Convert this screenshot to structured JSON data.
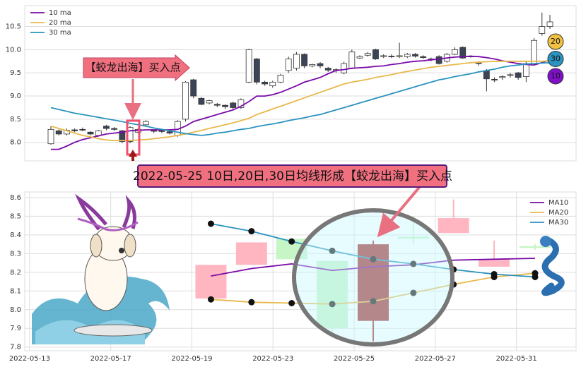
{
  "chart_data": [
    {
      "type": "candlestick",
      "annotation": "【蛟龙出海】买入点",
      "open": [
        7.97,
        8.25,
        8.18,
        8.27,
        8.28,
        8.22,
        8.15,
        8.35,
        8.3,
        8.25,
        8.02,
        8.22,
        8.38,
        8.26,
        8.25,
        8.23,
        8.15,
        8.5,
        9.35,
        8.95,
        8.85,
        8.82,
        8.8,
        8.85,
        8.75,
        9.3,
        9.8,
        9.3,
        9.22,
        9.3,
        9.55,
        9.6,
        9.9,
        9.65,
        9.7,
        9.6,
        9.55,
        9.5,
        9.6,
        9.82,
        9.88,
        10.0,
        9.85,
        9.86,
        9.85,
        9.85,
        9.9,
        9.85,
        9.8,
        9.85,
        9.75,
        9.9,
        10.05,
        9.85,
        9.72,
        9.55,
        9.36,
        9.4,
        9.45,
        9.5,
        9.42,
        9.7,
        10.35,
        10.5
      ],
      "high": [
        8.35,
        8.28,
        8.3,
        8.3,
        8.32,
        8.24,
        8.27,
        8.38,
        8.33,
        8.27,
        8.35,
        8.3,
        8.48,
        8.28,
        8.27,
        8.25,
        8.48,
        9.32,
        9.37,
        8.98,
        8.92,
        8.85,
        8.82,
        8.88,
        8.95,
        10.02,
        9.82,
        9.33,
        9.33,
        9.48,
        9.85,
        9.95,
        9.92,
        9.7,
        9.73,
        9.63,
        9.6,
        9.74,
        10.0,
        9.88,
        9.95,
        10.02,
        9.9,
        9.9,
        10.15,
        9.93,
        9.93,
        9.88,
        9.83,
        9.88,
        9.93,
        10.05,
        10.07,
        9.88,
        9.75,
        9.58,
        9.4,
        9.45,
        9.5,
        9.52,
        9.75,
        10.25,
        10.8,
        10.75
      ],
      "low": [
        7.95,
        8.15,
        8.15,
        8.22,
        8.24,
        8.15,
        8.12,
        8.26,
        8.25,
        7.98,
        7.98,
        8.2,
        8.35,
        8.2,
        8.2,
        8.17,
        8.12,
        8.45,
        8.95,
        8.8,
        8.82,
        8.76,
        8.72,
        8.72,
        8.72,
        9.28,
        9.25,
        9.22,
        9.18,
        9.28,
        9.5,
        9.55,
        9.6,
        9.62,
        9.6,
        9.52,
        9.5,
        9.47,
        9.58,
        9.8,
        9.85,
        9.78,
        9.82,
        9.82,
        9.82,
        9.82,
        9.83,
        9.8,
        9.75,
        9.68,
        9.72,
        9.88,
        9.8,
        9.83,
        9.65,
        9.1,
        9.3,
        9.35,
        9.4,
        9.35,
        9.3,
        9.68,
        10.3,
        10.45
      ],
      "close": [
        8.28,
        8.18,
        8.26,
        8.25,
        8.27,
        8.18,
        8.25,
        8.3,
        8.28,
        8.02,
        8.32,
        8.28,
        8.45,
        8.24,
        8.24,
        8.2,
        8.45,
        9.3,
        9.0,
        8.82,
        8.9,
        8.8,
        8.77,
        8.75,
        8.92,
        10.0,
        9.3,
        9.26,
        9.3,
        9.45,
        9.8,
        9.9,
        9.65,
        9.68,
        9.65,
        9.56,
        9.57,
        9.7,
        9.95,
        9.85,
        9.92,
        9.8,
        9.87,
        9.85,
        9.87,
        9.9,
        9.86,
        9.83,
        9.78,
        9.7,
        9.9,
        10.0,
        9.82,
        9.86,
        9.7,
        9.37,
        9.35,
        9.42,
        9.46,
        9.4,
        9.7,
        10.2,
        10.5,
        10.6
      ],
      "up_color": "#ffffff",
      "down_color": "#3c4558",
      "edge_color": "#333333",
      "series": [
        {
          "name": "10 ma",
          "color": "#7a0aa8",
          "values": [
            7.85,
            7.85,
            7.92,
            8.0,
            8.06,
            8.1,
            8.14,
            8.18,
            8.2,
            8.22,
            8.25,
            8.26,
            8.27,
            8.27,
            8.27,
            8.27,
            8.28,
            8.35,
            8.45,
            8.5,
            8.55,
            8.6,
            8.65,
            8.7,
            8.78,
            8.88,
            9.0,
            9.0,
            9.03,
            9.08,
            9.15,
            9.22,
            9.3,
            9.35,
            9.4,
            9.48,
            9.55,
            9.57,
            9.6,
            9.61,
            9.62,
            9.64,
            9.65,
            9.68,
            9.7,
            9.73,
            9.75,
            9.76,
            9.78,
            9.8,
            9.82,
            9.84,
            9.85,
            9.86,
            9.85,
            9.83,
            9.8,
            9.76,
            9.73,
            9.7,
            9.68,
            9.67,
            9.72,
            9.78
          ]
        },
        {
          "name": "20 ma",
          "color": "#e8b94a",
          "values": [
            8.35,
            8.3,
            8.25,
            8.2,
            8.15,
            8.12,
            8.08,
            8.05,
            8.04,
            8.04,
            8.04,
            8.05,
            8.06,
            8.08,
            8.1,
            8.12,
            8.15,
            8.18,
            8.22,
            8.26,
            8.3,
            8.34,
            8.38,
            8.42,
            8.47,
            8.52,
            8.6,
            8.66,
            8.72,
            8.78,
            8.84,
            8.9,
            8.96,
            9.02,
            9.08,
            9.14,
            9.2,
            9.26,
            9.3,
            9.33,
            9.36,
            9.4,
            9.43,
            9.46,
            9.5,
            9.53,
            9.56,
            9.59,
            9.62,
            9.64,
            9.66,
            9.68,
            9.7,
            9.72,
            9.73,
            9.74,
            9.75,
            9.75,
            9.75,
            9.75,
            9.75,
            9.75,
            9.75,
            9.76
          ]
        },
        {
          "name": "30 ma",
          "color": "#2a93c0",
          "values": [
            8.75,
            8.71,
            8.67,
            8.63,
            8.6,
            8.57,
            8.54,
            8.51,
            8.48,
            8.45,
            8.41,
            8.38,
            8.35,
            8.31,
            8.28,
            8.25,
            8.22,
            8.19,
            8.17,
            8.15,
            8.17,
            8.2,
            8.22,
            8.25,
            8.28,
            8.3,
            8.34,
            8.37,
            8.4,
            8.43,
            8.47,
            8.5,
            8.53,
            8.57,
            8.6,
            8.65,
            8.7,
            8.75,
            8.8,
            8.85,
            8.9,
            8.95,
            9.0,
            9.05,
            9.1,
            9.15,
            9.2,
            9.25,
            9.3,
            9.35,
            9.38,
            9.42,
            9.45,
            9.48,
            9.52,
            9.55,
            9.58,
            9.62,
            9.65,
            9.67,
            9.69,
            9.7,
            9.71,
            9.72
          ]
        }
      ],
      "badges": [
        {
          "label": "20",
          "color": "#f0c040"
        },
        {
          "label": "30",
          "color": "#2a93c0"
        },
        {
          "label": "10",
          "color": "#8010c8"
        }
      ],
      "ylim": [
        7.6,
        10.95
      ],
      "yticks": [
        {
          "value": 8,
          "label": "8.0"
        },
        8.5,
        {
          "value": 9,
          "label": "9.0"
        },
        9.5,
        {
          "value": 10,
          "label": "10.0"
        },
        10.5
      ],
      "grid": true,
      "legend": "upper left"
    },
    {
      "type": "candlestick",
      "title": "2022-05-25 10日,20日,30日均线形成【蛟龙出海】买入点",
      "x": [
        4.47,
        5.47,
        6.46,
        7.46,
        8.47,
        9.46,
        10.45,
        11.45,
        12.46
      ],
      "open": [
        8.06,
        8.24,
        8.38,
        8.26,
        7.94,
        8.38,
        8.41,
        8.23,
        8.34
      ],
      "high": [
        8.24,
        8.36,
        8.38,
        8.26,
        8.37,
        8.5,
        8.59,
        8.37,
        8.35
      ],
      "low": [
        8.06,
        8.24,
        8.27,
        7.88,
        7.83,
        8.35,
        8.41,
        8.23,
        8.32
      ],
      "close": [
        8.24,
        8.36,
        8.27,
        7.9,
        8.35,
        8.39,
        8.49,
        8.27,
        8.33
      ],
      "colors": [
        "#ffb6c1",
        "#ffb6c1",
        "#c6f5c6",
        "#c6f5c6",
        "#a52a2a",
        "#c6f5c6",
        "#ffb6c1",
        "#ffb6c1",
        "#c6f5c6"
      ],
      "series": [
        {
          "name": "MA10",
          "color": "#7a0aa8",
          "values": [
            8.18,
            8.22,
            8.245,
            8.21,
            8.23,
            8.24,
            8.265,
            8.27,
            8.275
          ]
        },
        {
          "name": "MA20",
          "color": "#e8b94a",
          "marker": true,
          "values": [
            8.055,
            8.04,
            8.035,
            8.03,
            8.045,
            8.09,
            8.135,
            8.175,
            8.195
          ]
        },
        {
          "name": "MA30",
          "color": "#2a93c0",
          "marker": true,
          "values": [
            8.46,
            8.42,
            8.365,
            8.315,
            8.27,
            8.245,
            8.215,
            8.19,
            8.175
          ]
        }
      ],
      "xlim": [
        -0.12,
        13.47
      ],
      "xticks": [
        {
          "value": 0,
          "label": "2022-05-13"
        },
        {
          "value": 2,
          "label": "2022-05-17"
        },
        {
          "value": 4,
          "label": "2022-05-19"
        },
        {
          "value": 6,
          "label": "2022-05-23"
        },
        {
          "value": 8,
          "label": "2022-05-25"
        },
        {
          "value": 10,
          "label": "2022-05-27"
        },
        {
          "value": 12,
          "label": "2022-05-31"
        }
      ],
      "ylim": [
        7.78,
        8.63
      ],
      "yticks": [
        7.8,
        7.9,
        {
          "value": 8,
          "label": "8.0"
        },
        8.1,
        8.2,
        8.3,
        8.4,
        8.5,
        8.6
      ],
      "grid": true,
      "legend": "upper right"
    }
  ]
}
